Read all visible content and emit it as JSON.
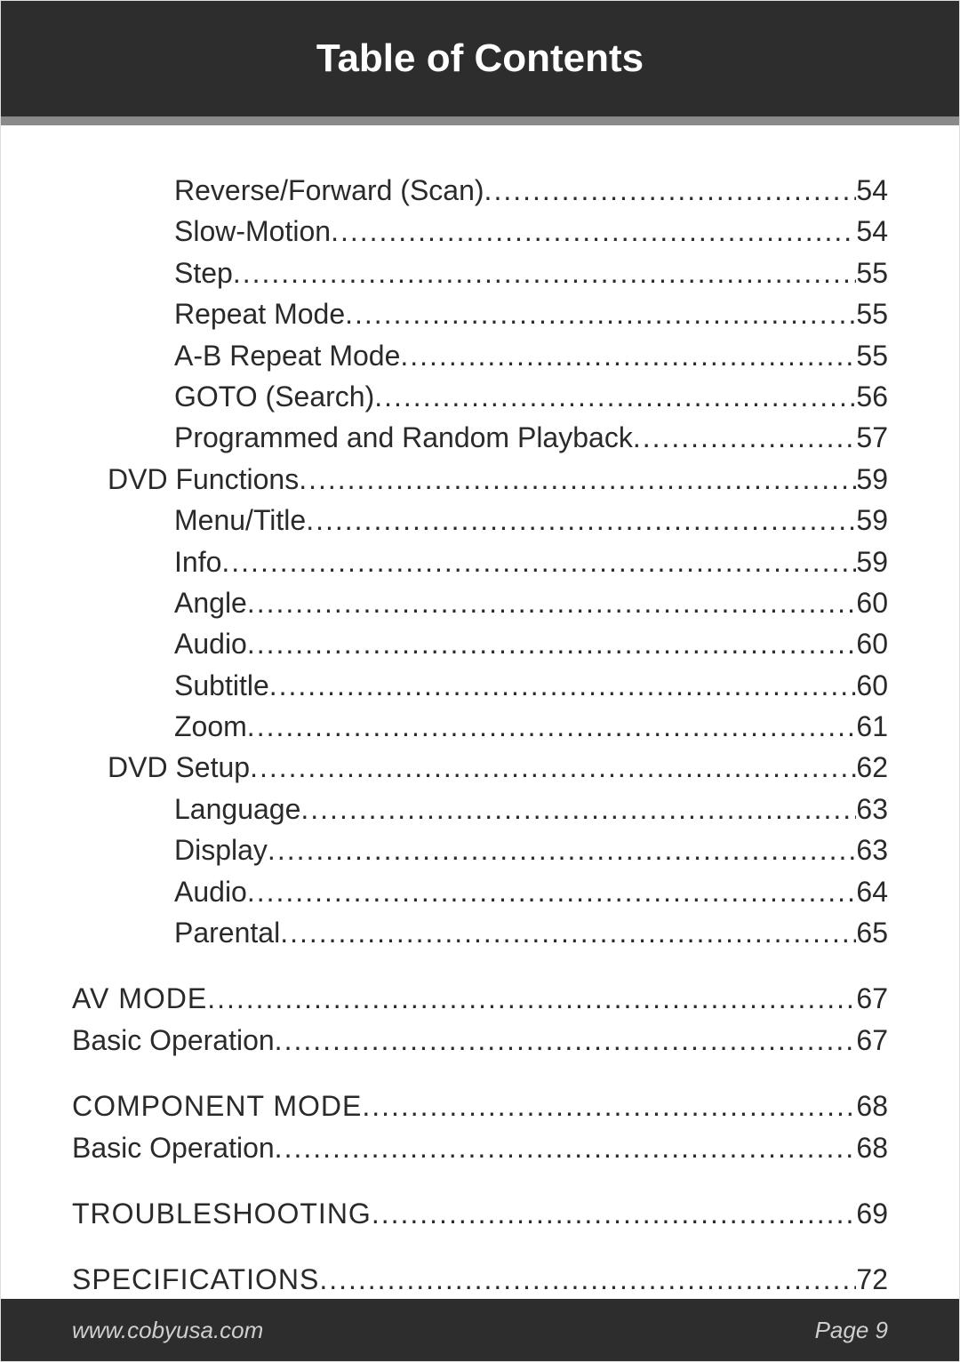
{
  "header": {
    "title": "Table of Contents"
  },
  "colors": {
    "header_bg": "#2d2d2d",
    "divider_bg": "#8a8a8a",
    "page_bg": "#ffffff",
    "text": "#2a2a2a",
    "footer_text": "#cfcfcf"
  },
  "typography": {
    "header_fontsize": 44,
    "body_fontsize": 32,
    "footer_fontsize": 26
  },
  "toc": [
    {
      "label": "Reverse/Forward (Scan)",
      "page": "54",
      "level": 3,
      "caps": false
    },
    {
      "label": "Slow-Motion",
      "page": "54",
      "level": 3,
      "caps": false
    },
    {
      "label": "Step",
      "page": "55",
      "level": 3,
      "caps": false
    },
    {
      "label": "Repeat Mode",
      "page": "55",
      "level": 3,
      "caps": false
    },
    {
      "label": "A-B Repeat Mode",
      "page": "55",
      "level": 3,
      "caps": false
    },
    {
      "label": "GOTO (Search)",
      "page": "56",
      "level": 3,
      "caps": false
    },
    {
      "label": "Programmed and Random Playback",
      "page": "57",
      "level": 3,
      "caps": false
    },
    {
      "label": "DVD Functions",
      "page": "59",
      "level": 2,
      "caps": false
    },
    {
      "label": "Menu/Title",
      "page": "59",
      "level": 3,
      "caps": false
    },
    {
      "label": "Info",
      "page": "59",
      "level": 3,
      "caps": false
    },
    {
      "label": "Angle",
      "page": "60",
      "level": 3,
      "caps": false
    },
    {
      "label": "Audio",
      "page": "60",
      "level": 3,
      "caps": false
    },
    {
      "label": "Subtitle",
      "page": "60",
      "level": 3,
      "caps": false
    },
    {
      "label": "Zoom",
      "page": "61",
      "level": 3,
      "caps": false
    },
    {
      "label": "DVD Setup",
      "page": "62",
      "level": 2,
      "caps": false
    },
    {
      "label": "Language",
      "page": "63",
      "level": 3,
      "caps": false
    },
    {
      "label": "Display",
      "page": "63",
      "level": 3,
      "caps": false
    },
    {
      "label": "Audio",
      "page": "64",
      "level": 3,
      "caps": false
    },
    {
      "label": "Parental",
      "page": "65",
      "level": 3,
      "caps": false
    },
    {
      "gap": true
    },
    {
      "label": "AV MODE",
      "page": " 67",
      "level": 1,
      "caps": true
    },
    {
      "label": "Basic Operation",
      "page": "67",
      "level": 1,
      "caps": false
    },
    {
      "gap": true
    },
    {
      "label": "COMPONENT MODE",
      "page": " 68",
      "level": 1,
      "caps": true
    },
    {
      "label": "Basic Operation",
      "page": "68",
      "level": 1,
      "caps": false
    },
    {
      "gap": true
    },
    {
      "label": "TROUBLESHOOTING",
      "page": " 69",
      "level": 1,
      "caps": true
    },
    {
      "gap": true
    },
    {
      "label": "SPECIFICATIONS",
      "page": " 72",
      "level": 1,
      "caps": true
    }
  ],
  "footer": {
    "url": "www.cobyusa.com",
    "page_label": "Page 9"
  }
}
